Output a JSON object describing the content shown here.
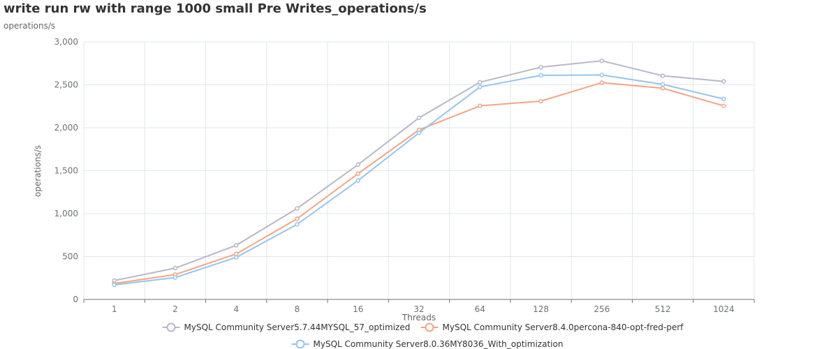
{
  "title": "write run rw with range 1000 small Pre Writes_operations/s",
  "subtitle": "operations/s",
  "chart_data": {
    "type": "line",
    "title": "write run rw with range 1000 small Pre Writes_operations/s",
    "xlabel": "Threads",
    "ylabel": "operations/s",
    "categories": [
      "1",
      "2",
      "4",
      "8",
      "16",
      "32",
      "64",
      "128",
      "256",
      "512",
      "1024"
    ],
    "ylim": [
      0,
      3000
    ],
    "yticks": [
      0,
      500,
      1000,
      1500,
      2000,
      2500,
      3000
    ],
    "ytick_labels": [
      "0",
      "500",
      "1,000",
      "1,500",
      "2,000",
      "2,500",
      "3,000"
    ],
    "grid": true,
    "legend_position": "bottom-center",
    "series": [
      {
        "name": "MySQL Community Server5.7.44MYSQL_57_optimized",
        "color": "#b6b8c8",
        "values": [
          220,
          365,
          630,
          1060,
          1570,
          2115,
          2530,
          2705,
          2780,
          2605,
          2540
        ]
      },
      {
        "name": "MySQL Community Server8.4.0percona-840-opt-fred-perf",
        "color": "#f4a582",
        "values": [
          185,
          290,
          530,
          940,
          1465,
          1975,
          2255,
          2310,
          2525,
          2460,
          2255
        ]
      },
      {
        "name": "MySQL Community Server8.0.36MY8036_With_optimization",
        "color": "#92c5f0",
        "values": [
          170,
          255,
          490,
          875,
          1385,
          1940,
          2475,
          2610,
          2615,
          2505,
          2335
        ]
      }
    ]
  }
}
